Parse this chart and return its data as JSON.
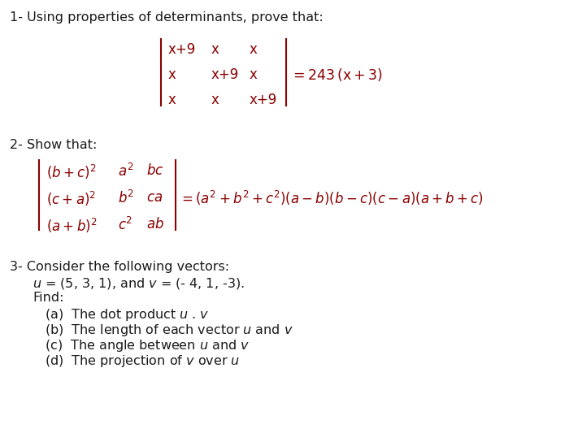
{
  "background_color": "#ffffff",
  "text_color": "#1a1a1a",
  "red_color": "#8b0000",
  "fig_width": 7.0,
  "fig_height": 5.49,
  "dpi": 100,
  "section1_header": "1- Using properties of determinants, prove that:",
  "section2_header": "2- Show that:",
  "section3_header": "3- Consider the following vectors:",
  "matrix1_entries": [
    [
      "x+9",
      "x",
      "x"
    ],
    [
      "x",
      "x+9",
      "x"
    ],
    [
      "x",
      "x",
      "x+9"
    ]
  ],
  "matrix1_eq": "=243 (x+3)",
  "matrix2_row1": [
    "(b+c)²",
    "a²",
    "bc"
  ],
  "matrix2_row2": [
    "(c+a)²",
    "b²",
    "ca"
  ],
  "matrix2_row3": [
    "(a+b)²",
    "c²",
    "ab"
  ],
  "matrix2_eq": "=(a² +b² +c² )(a-b)(b-c)(c-a)(a+b+c)",
  "s3_line1": "u = (5, 3, 1), and v = (- 4, 1, -3).",
  "s3_line2": "Find:",
  "s3_line3": "(a)  The dot product u . v",
  "s3_line4": "(b)  The length of each vector u and v",
  "s3_line5": "(c)  The angle between u and v",
  "s3_line6": "(d)  The projection of v over u"
}
